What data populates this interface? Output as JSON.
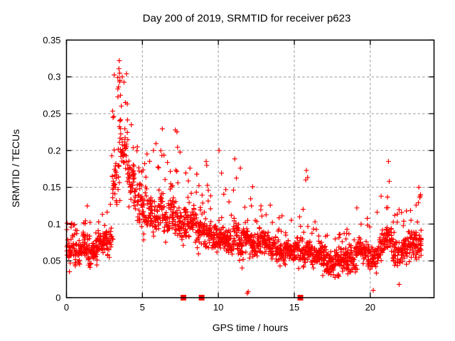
{
  "chart_data": {
    "type": "scatter",
    "title": "Day 200 of 2019, SRMTID for receiver p623",
    "xlabel": "GPS time / hours",
    "ylabel": "SRMTID / TECUs",
    "xlim": [
      0,
      24.2
    ],
    "ylim": [
      0,
      0.35
    ],
    "xticks": [
      [
        0,
        "0"
      ],
      [
        5,
        "5"
      ],
      [
        10,
        "10"
      ],
      [
        15,
        "15"
      ],
      [
        20,
        "20"
      ]
    ],
    "yticks": [
      [
        0,
        "0"
      ],
      [
        0.05,
        "0.05"
      ],
      [
        0.1,
        "0.1"
      ],
      [
        0.15,
        "0.15"
      ],
      [
        0.2,
        "0.2"
      ],
      [
        0.25,
        "0.25"
      ],
      [
        0.3,
        "0.3"
      ],
      [
        0.35,
        "0.35"
      ]
    ],
    "grid": true,
    "legend": "none",
    "marker": "plus",
    "marker_color": "#ff0000",
    "grid_color": "#999999",
    "series_name": "SRMTID",
    "seed": 2019200,
    "bins_format": [
      "x_start",
      "x_end",
      "n_points",
      "y_low",
      "y_high",
      "y_tail_max",
      "tail_prob"
    ],
    "bins": [
      [
        0.0,
        0.5,
        40,
        0.035,
        0.095,
        0.105,
        0.06
      ],
      [
        0.5,
        1.0,
        42,
        0.03,
        0.085,
        0.1,
        0.05
      ],
      [
        1.0,
        1.5,
        45,
        0.03,
        0.1,
        0.125,
        0.08
      ],
      [
        1.5,
        2.0,
        40,
        0.035,
        0.09,
        0.11,
        0.05
      ],
      [
        2.0,
        2.5,
        42,
        0.04,
        0.095,
        0.12,
        0.06
      ],
      [
        2.5,
        3.0,
        42,
        0.05,
        0.11,
        0.14,
        0.08
      ],
      [
        3.0,
        3.5,
        45,
        0.09,
        0.24,
        0.325,
        0.22
      ],
      [
        3.5,
        4.0,
        45,
        0.14,
        0.26,
        0.32,
        0.18
      ],
      [
        4.0,
        4.5,
        40,
        0.1,
        0.21,
        0.26,
        0.12
      ],
      [
        4.5,
        5.0,
        42,
        0.09,
        0.17,
        0.21,
        0.1
      ],
      [
        5.0,
        5.5,
        42,
        0.08,
        0.16,
        0.2,
        0.1
      ],
      [
        5.5,
        6.0,
        42,
        0.08,
        0.15,
        0.21,
        0.1
      ],
      [
        6.0,
        6.5,
        45,
        0.08,
        0.16,
        0.23,
        0.12
      ],
      [
        6.5,
        7.0,
        42,
        0.07,
        0.15,
        0.19,
        0.1
      ],
      [
        7.0,
        7.5,
        45,
        0.07,
        0.15,
        0.23,
        0.1
      ],
      [
        7.5,
        8.0,
        42,
        0.06,
        0.14,
        0.2,
        0.1
      ],
      [
        8.0,
        8.5,
        45,
        0.07,
        0.14,
        0.2,
        0.1
      ],
      [
        8.5,
        9.0,
        42,
        0.06,
        0.13,
        0.17,
        0.08
      ],
      [
        9.0,
        9.5,
        42,
        0.055,
        0.12,
        0.18,
        0.08
      ],
      [
        9.5,
        10.0,
        42,
        0.05,
        0.12,
        0.16,
        0.08
      ],
      [
        10.0,
        10.5,
        45,
        0.05,
        0.12,
        0.2,
        0.08
      ],
      [
        10.5,
        11.0,
        42,
        0.05,
        0.11,
        0.15,
        0.08
      ],
      [
        11.0,
        11.5,
        42,
        0.05,
        0.12,
        0.19,
        0.08
      ],
      [
        11.5,
        12.0,
        42,
        0.04,
        0.11,
        0.14,
        0.06
      ],
      [
        12.0,
        12.5,
        42,
        0.04,
        0.1,
        0.155,
        0.06
      ],
      [
        12.5,
        13.0,
        42,
        0.04,
        0.1,
        0.13,
        0.06
      ],
      [
        13.0,
        13.5,
        42,
        0.04,
        0.1,
        0.14,
        0.06
      ],
      [
        13.5,
        14.0,
        42,
        0.04,
        0.09,
        0.12,
        0.06
      ],
      [
        14.0,
        14.5,
        42,
        0.035,
        0.09,
        0.15,
        0.06
      ],
      [
        14.5,
        15.0,
        42,
        0.035,
        0.09,
        0.12,
        0.05
      ],
      [
        15.0,
        15.5,
        42,
        0.03,
        0.09,
        0.14,
        0.06
      ],
      [
        15.5,
        16.0,
        42,
        0.03,
        0.085,
        0.17,
        0.05
      ],
      [
        16.0,
        16.5,
        42,
        0.03,
        0.08,
        0.11,
        0.05
      ],
      [
        16.5,
        17.0,
        42,
        0.03,
        0.08,
        0.1,
        0.05
      ],
      [
        17.0,
        17.5,
        42,
        0.025,
        0.07,
        0.09,
        0.05
      ],
      [
        17.5,
        18.0,
        45,
        0.02,
        0.07,
        0.09,
        0.05
      ],
      [
        18.0,
        18.5,
        45,
        0.025,
        0.075,
        0.1,
        0.05
      ],
      [
        18.5,
        19.0,
        42,
        0.03,
        0.08,
        0.11,
        0.05
      ],
      [
        19.0,
        19.5,
        42,
        0.03,
        0.09,
        0.13,
        0.06
      ],
      [
        19.5,
        20.0,
        42,
        0.03,
        0.08,
        0.11,
        0.05
      ],
      [
        20.0,
        20.5,
        42,
        0.03,
        0.09,
        0.12,
        0.06
      ],
      [
        20.5,
        21.0,
        42,
        0.04,
        0.1,
        0.15,
        0.07
      ],
      [
        21.0,
        21.5,
        42,
        0.045,
        0.12,
        0.15,
        0.1
      ],
      [
        21.5,
        22.0,
        42,
        0.03,
        0.09,
        0.12,
        0.05
      ],
      [
        22.0,
        22.5,
        42,
        0.04,
        0.095,
        0.12,
        0.06
      ],
      [
        22.5,
        23.0,
        45,
        0.045,
        0.105,
        0.13,
        0.07
      ],
      [
        23.0,
        23.4,
        40,
        0.05,
        0.11,
        0.14,
        0.08
      ]
    ],
    "extra_points": [
      [
        3.48,
        0.322
      ],
      [
        3.5,
        0.305
      ],
      [
        3.52,
        0.295
      ],
      [
        15.8,
        0.173
      ],
      [
        15.75,
        0.16
      ],
      [
        21.2,
        0.185
      ],
      [
        21.25,
        0.158
      ],
      [
        10.05,
        0.2
      ],
      [
        11.45,
        0.176
      ],
      [
        9.2,
        0.185
      ],
      [
        20.2,
        0.01
      ],
      [
        21.9,
        0.018
      ],
      [
        23.2,
        0.15
      ],
      [
        11.9,
        0.006
      ],
      [
        11.97,
        0.008
      ]
    ],
    "zero_markers": {
      "marker": "filled-square",
      "color": "#ff0000",
      "x": [
        7.7,
        8.9,
        15.4
      ]
    }
  }
}
